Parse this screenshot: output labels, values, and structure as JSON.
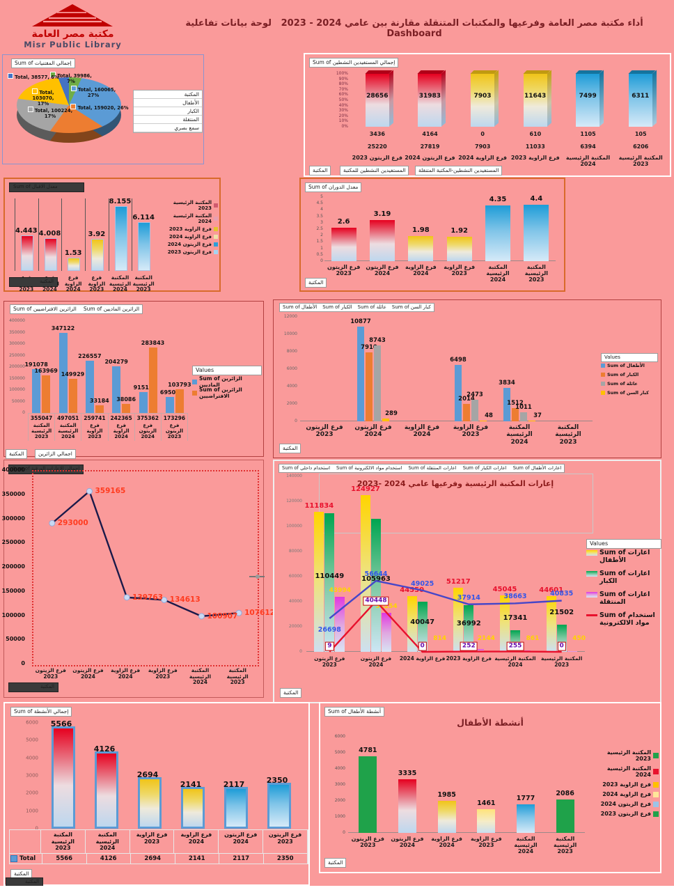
{
  "header": {
    "logo_ar": "مكتبة مصر العامة",
    "logo_en": "Misr Public Library",
    "title": "أداء مكتبة مصر العامة وفرعيها والمكتبات المتنقلة مقارنة بين عامي 2024 - 2023",
    "subtitle": "لوحة بيانات تفاعلية",
    "dashboard_word": "Dashboard"
  },
  "common": {
    "filter_label": "المكتبة",
    "values_label": "Values",
    "total_label": "Total",
    "categories": [
      {
        "l1": "المكتبة الرئيسية",
        "l2": "2023"
      },
      {
        "l1": "المكتبة الرئيسية",
        "l2": "2024"
      },
      {
        "l1": "فرع الزاوية",
        "l2": "2023"
      },
      {
        "l1": "فرع الزاوية",
        "l2": "2024"
      },
      {
        "l1": "فرع الزيتون",
        "l2": "2024"
      },
      {
        "l1": "فرع الزيتون",
        "l2": "2023"
      }
    ]
  },
  "chart_data": [
    {
      "name": "holdings-pie",
      "type": "pie",
      "field_button": "Sum of إجمالي المقتنيات",
      "slices": [
        {
          "label": "Total, 39986, 7%",
          "value": 39986,
          "pct": 7,
          "color": "#70AD47"
        },
        {
          "label": "Total, 160065, 27%",
          "value": 160065,
          "pct": 27,
          "color": "#5B9BD5"
        },
        {
          "label": "Total, 159020, 26%",
          "value": 159020,
          "pct": 26,
          "color": "#ED7D31"
        },
        {
          "label": "Total, 100224, 17%",
          "value": 100224,
          "pct": 17,
          "color": "#A5A5A5"
        },
        {
          "label": "Total, 103070, 17%",
          "value": 103070,
          "pct": 17,
          "color": "#FFC000"
        },
        {
          "label": "Total, 38577, 6%",
          "value": 38577,
          "pct": 6,
          "color": "#4472C4"
        }
      ],
      "filter_items": [
        "المكتبة",
        "الأطفال",
        "الكبار",
        "المنتقلة",
        "سمع بصري"
      ]
    },
    {
      "name": "active-beneficiaries",
      "type": "bar100",
      "field_button": "Sum of إجمالي المستفيدين النشطين",
      "yticks": [
        "0%",
        "10%",
        "20%",
        "30%",
        "40%",
        "50%",
        "60%",
        "70%",
        "80%",
        "90%",
        "100%"
      ],
      "totals": [
        "28656",
        "31983",
        "7903",
        "11643",
        "7499",
        "6311"
      ],
      "row_mobile": [
        "3436",
        "4164",
        "0",
        "610",
        "1105",
        "105"
      ],
      "row_library": [
        "25220",
        "27819",
        "7903",
        "11033",
        "6394",
        "6206"
      ],
      "bar_colors": [
        "red",
        "red",
        "yellow",
        "yellow",
        "blue",
        "blue"
      ],
      "footer_buttons": [
        "المكتبة",
        "المستفيدين النشطين للمكتبة",
        "المستفيدين النشطين-المكتبة المتنقلة"
      ]
    },
    {
      "name": "attendance-rate",
      "type": "bar",
      "field_button": "Sum of معدل الاقبال",
      "values": [
        4.443,
        4.008,
        1.53,
        3.92,
        8.155,
        6.114
      ],
      "labels": [
        "4.443",
        "4.008",
        "1.53",
        "3.92",
        "8.155",
        "6.114"
      ],
      "ymax": 9,
      "bar_colors": [
        "red",
        "red",
        "yellow",
        "yellow",
        "blue",
        "blue"
      ],
      "legend_colors": [
        "#D05A6E",
        "#E8A0B0",
        "#E3C52E",
        "#EDE2A8",
        "#2E9FD8",
        "#A6D4F0"
      ]
    },
    {
      "name": "turnover-rate",
      "type": "bar",
      "field_button": "Sum of معدل الدوران",
      "values": [
        2.6,
        3.19,
        1.98,
        1.92,
        4.35,
        4.4
      ],
      "labels": [
        "2.6",
        "3.19",
        "1.98",
        "1.92",
        "4.35",
        "4.4"
      ],
      "ymax": 5,
      "yticks": [
        "0",
        "0.5",
        "1",
        "1.5",
        "2",
        "2.5",
        "3",
        "3.5",
        "4",
        "4.5",
        "5"
      ],
      "bar_colors": [
        "red",
        "red",
        "yellow",
        "yellow",
        "blue",
        "blue"
      ]
    },
    {
      "name": "visitors",
      "type": "grouped",
      "field_buttons": [
        "Sum of الزائرين الافتراضيين",
        "Sum of الزائرين الماديين"
      ],
      "ymax": 400000,
      "yticks": [
        "0",
        "50000",
        "100000",
        "150000",
        "200000",
        "250000",
        "300000",
        "350000",
        "400000"
      ],
      "series": [
        {
          "name": "Sum of الزائرين الماديين",
          "color": "#5B9BD5",
          "values": [
            191078,
            347122,
            226557,
            204279,
            91519,
            69503
          ],
          "labels": [
            "191078",
            "347122",
            "226557",
            "204279",
            "91519",
            "69503"
          ]
        },
        {
          "name": "Sum of الزائرين الافتراضيين",
          "color": "#ED7D31",
          "values": [
            163969,
            149929,
            33184,
            38086,
            283843,
            103793
          ],
          "labels": [
            "163969",
            "149929",
            "33184",
            "38086",
            "283843",
            "103793"
          ]
        }
      ],
      "totals": [
        "355047",
        "497051",
        "259741",
        "242365",
        "375362",
        "173296"
      ],
      "footer_buttons": [
        "المكتبة",
        "اجمالي الزائرين"
      ]
    },
    {
      "name": "age-groups",
      "type": "grouped",
      "field_buttons": [
        "Sum of الأطفال",
        "Sum of الكبار",
        "Sum of عائلة",
        "Sum of كبار السن"
      ],
      "ymax": 12000,
      "yticks": [
        "0",
        "2000",
        "4000",
        "6000",
        "8000",
        "10000",
        "12000"
      ],
      "series": [
        {
          "name": "Sum of الأطفال",
          "color": "#5B9BD5",
          "values": [
            null,
            10877,
            null,
            6498,
            3834,
            null
          ],
          "labels": [
            "",
            "10877",
            "",
            "6498",
            "3834",
            ""
          ]
        },
        {
          "name": "Sum of الكبار",
          "color": "#ED7D31",
          "values": [
            null,
            7910,
            null,
            2014,
            1512,
            null
          ],
          "labels": [
            "",
            "7910",
            "",
            "2014",
            "1512",
            ""
          ]
        },
        {
          "name": "Sum of عائلة",
          "color": "#A5A5A5",
          "values": [
            null,
            8743,
            null,
            2473,
            1011,
            null
          ],
          "labels": [
            "",
            "8743",
            "",
            "2473",
            "1011",
            ""
          ]
        },
        {
          "name": "Sum of كبار السن",
          "color": "#FFC000",
          "values": [
            null,
            289,
            null,
            48,
            37,
            null
          ],
          "labels": [
            "",
            "289",
            "",
            "48",
            "37",
            ""
          ]
        }
      ]
    },
    {
      "name": "paper-loans",
      "type": "line",
      "field_button": "Sum of اجمالي الاعارات الورقية",
      "ymax": 400000,
      "yticks": [
        "0",
        "50000",
        "100000",
        "150000",
        "200000",
        "250000",
        "300000",
        "350000",
        "400000"
      ],
      "values": [
        293000,
        359165,
        139763,
        134613,
        100907,
        107612
      ],
      "labels": [
        "293000",
        "359165",
        "139763",
        "134613",
        "100907",
        "107612"
      ],
      "line_color": "#1A1A4A",
      "marker_fill": "#C9D9F2",
      "label_color": "#FF3B1F"
    },
    {
      "name": "loans-combo",
      "type": "combo",
      "field_buttons": [
        "Sum of اعارات الأطفال",
        "Sum of اعارات الكبار",
        "Sum of اعارات المنتقلة",
        "Sum of استخدام مواد الالكترونية",
        "Sum of استخدام داخلي"
      ],
      "title": "إعارات المكتبة الرئيسية وفرعيها عامي 2024 -2023",
      "ymax": 140000,
      "yticks": [
        "0",
        "20000",
        "40000",
        "60000",
        "80000",
        "100000",
        "120000",
        "140000"
      ],
      "bar_series": [
        {
          "name": "Sum of اعارات الأطفال",
          "style": "grad-yellow2",
          "label_color": "#E8112D",
          "values": [
            111834,
            124927,
            44550,
            51217,
            45045,
            44601
          ],
          "labels": [
            "111834",
            "124927",
            "44550",
            "51217",
            "45045",
            "44601"
          ]
        },
        {
          "name": "Sum of اعارات الكبار",
          "style": "grad-green",
          "label_color": "#111111",
          "values": [
            110449,
            105963,
            40047,
            36992,
            17341,
            21502
          ],
          "labels": [
            "110449",
            "105963",
            "40047",
            "36992",
            "17341",
            "21502"
          ]
        },
        {
          "name": "Sum of اعارات المنتقلة",
          "style": "grad-magenta",
          "label_color": "#FFD400",
          "values": [
            43994,
            31254,
            814,
            2144,
            861,
            450
          ],
          "labels": [
            "43994",
            "31254",
            "814",
            "2144",
            "861",
            "450"
          ]
        }
      ],
      "line_series": [
        {
          "name": "Sum of استخدام داخلي",
          "color": "#4646C8",
          "label_color": "#3355E8",
          "values": [
            26698,
            56644,
            49025,
            37914,
            38663,
            40835
          ],
          "labels": [
            "26698",
            "56644",
            "49025",
            "37914",
            "38663",
            "40835"
          ]
        },
        {
          "name": "Sum of استخدام مواد الالكترونية",
          "color": "#E8112D",
          "label_color": "#6A0DAD",
          "boxed": true,
          "values": [
            9,
            40448,
            0,
            252,
            255,
            0
          ],
          "labels": [
            "9",
            "40448",
            "0",
            "252",
            "255",
            "0"
          ]
        }
      ],
      "legend": [
        "Sum of اعارات الأطفال",
        "Sum of اعارات الكبار",
        "Sum of اعارات المنتقلة",
        "Sum of استخدام مواد الالكترونية"
      ]
    },
    {
      "name": "total-activities",
      "type": "bar",
      "field_button": "Sum of إجمالي الأنشطة",
      "values": [
        5566,
        4126,
        2694,
        2141,
        2117,
        2350
      ],
      "labels": [
        "5566",
        "4126",
        "2694",
        "2141",
        "2117",
        "2350"
      ],
      "ymax": 6000,
      "yticks": [
        "0",
        "1000",
        "2000",
        "3000",
        "4000",
        "5000",
        "6000"
      ],
      "bar_colors": [
        "red",
        "red",
        "yellow",
        "yellow",
        "blue",
        "blue"
      ]
    },
    {
      "name": "children-activities",
      "type": "bar",
      "field_button": "Sum of أنشطة الأطفال",
      "title": "أنشطة الأطفال",
      "values": [
        4781,
        3335,
        1985,
        1461,
        1777,
        2086
      ],
      "labels": [
        "4781",
        "3335",
        "1985",
        "1461",
        "1777",
        "2086"
      ],
      "ymax": 6000,
      "yticks": [
        "0",
        "1000",
        "2000",
        "3000",
        "4000",
        "5000",
        "6000"
      ],
      "bar_styles": [
        "solid-green",
        "grad-red",
        "grad-yellow",
        "grad-paleyellow",
        "grad-blue",
        "solid-green"
      ],
      "legend_colors": [
        "#21A24A",
        "#E8112D",
        "#FFC000",
        "#FFE699",
        "#9DC3E6",
        "#21A24A"
      ]
    }
  ]
}
